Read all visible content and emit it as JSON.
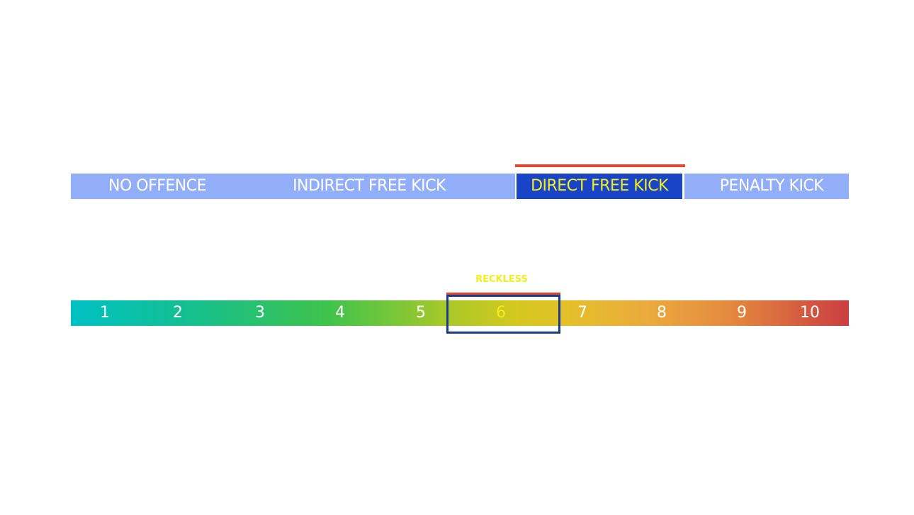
{
  "sanctions": [
    "NO OFFENCE",
    "INDIRECT FREE KICK",
    "DIRECT FREE KICK",
    "PENALTY KICK"
  ],
  "scale": {
    "label": "RECKLESS",
    "levels": [
      1,
      2,
      3,
      4,
      5,
      6,
      7,
      8,
      9,
      10
    ]
  }
}
